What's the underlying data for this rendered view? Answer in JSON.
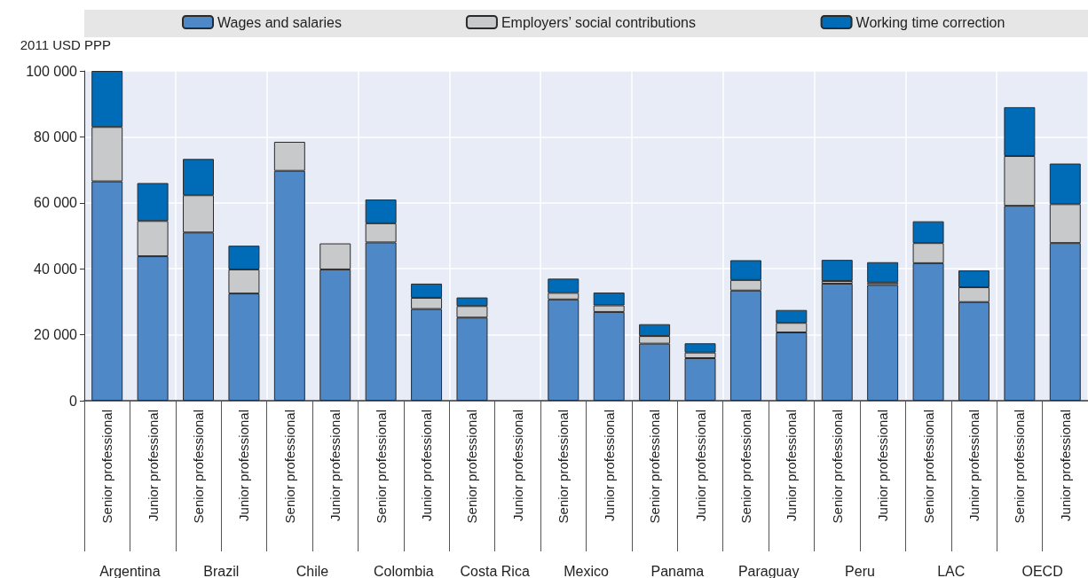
{
  "chart_data": {
    "type": "bar",
    "stacked": true,
    "ylabel": "2011 USD PPP",
    "categories": [
      "Senior professional",
      "Junior professional",
      "Senior professional",
      "Junior professional",
      "Senior professional",
      "Junior professional",
      "Senior professional",
      "Junior professional",
      "Senior professional",
      "Junior professional",
      "Senior professional",
      "Junior professional",
      "Senior professional",
      "Junior professional",
      "Senior professional",
      "Junior professional",
      "Senior professional",
      "Junior professional",
      "Senior professional",
      "Junior professional",
      "Senior professional",
      "Junior professional"
    ],
    "annotations": [
      "Argentina",
      "Brazil",
      "Chile",
      "Colombia",
      "Costa Rica",
      "Mexico",
      "Panama",
      "Paraguay",
      "Peru",
      "LAC",
      "OECD"
    ],
    "series": [
      {
        "name": "Wages and salaries",
        "color": "#4e88c7",
        "values": [
          66500,
          43800,
          51000,
          32500,
          69700,
          39800,
          48000,
          27800,
          25200,
          null,
          30700,
          26900,
          17300,
          12900,
          33400,
          20700,
          35500,
          35100,
          41700,
          29900,
          59100,
          47800
        ]
      },
      {
        "name": "Employers’ social contributions",
        "color": "#c8c9cb",
        "values": [
          16500,
          10700,
          11300,
          7300,
          8800,
          7900,
          5800,
          3400,
          3500,
          null,
          2000,
          2000,
          2300,
          1700,
          3200,
          2900,
          800,
          700,
          6100,
          4500,
          15100,
          11800
        ]
      },
      {
        "name": "Working time correction",
        "color": "#006bb6",
        "values": [
          17000,
          11500,
          11000,
          7200,
          null,
          null,
          7200,
          4300,
          2600,
          null,
          4300,
          3900,
          3600,
          2800,
          6000,
          3900,
          6400,
          6200,
          6600,
          5100,
          14800,
          12300
        ]
      }
    ],
    "ylim": [
      0,
      100000
    ],
    "yticks": [
      {
        "value": 0,
        "label": "0"
      },
      {
        "value": 20000,
        "label": "20 000"
      },
      {
        "value": 40000,
        "label": "40 000"
      },
      {
        "value": 60000,
        "label": "60 000"
      },
      {
        "value": 80000,
        "label": "80 000"
      },
      {
        "value": 100000,
        "label": "100 000"
      }
    ],
    "grid": true,
    "legend": "top"
  }
}
